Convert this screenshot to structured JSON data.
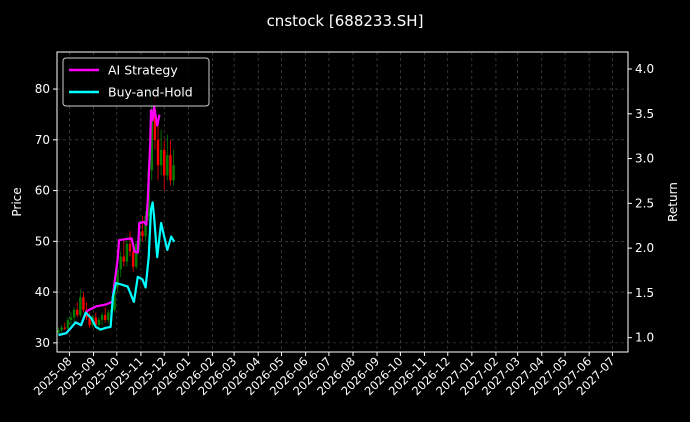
{
  "chart_data": {
    "type": "line",
    "title": "cnstock [688233.SH]",
    "ylabel": "Price",
    "y2label": "Return",
    "xlim": [
      "2025-07-16",
      "2027-07-21"
    ],
    "ylim": [
      28.2,
      87.3
    ],
    "y2lim": [
      0.84,
      4.19
    ],
    "grid": true,
    "legend_position": "top-left",
    "colors": {
      "background": "#000000",
      "grid": "#555555",
      "up": "#008000",
      "down": "#ff0000",
      "strategy": "#ff00ff",
      "buyhold": "#00ffff"
    },
    "x_ticks": [
      "2025-08",
      "2025-09",
      "2025-10",
      "2025-11",
      "2025-12",
      "2026-01",
      "2026-02",
      "2026-03",
      "2026-04",
      "2026-05",
      "2026-06",
      "2026-07",
      "2026-08",
      "2026-09",
      "2026-10",
      "2026-11",
      "2026-12",
      "2027-01",
      "2027-02",
      "2027-03",
      "2027-04",
      "2027-05",
      "2027-06",
      "2027-07"
    ],
    "y_ticks": [
      30,
      40,
      50,
      60,
      70,
      80
    ],
    "y2_ticks": [
      "1.0",
      "1.5",
      "2.0",
      "2.5",
      "3.0",
      "3.5",
      "4.0"
    ],
    "candles": [
      [
        "2025-07-18",
        32,
        33,
        31.5,
        32.5
      ],
      [
        "2025-07-22",
        32.5,
        33.5,
        32,
        33
      ],
      [
        "2025-07-26",
        33,
        34,
        32.5,
        32.8
      ],
      [
        "2025-07-30",
        32.8,
        35,
        32.5,
        34.5
      ],
      [
        "2025-08-03",
        34.5,
        36,
        33.5,
        35
      ],
      [
        "2025-08-07",
        35,
        37,
        34,
        36.5
      ],
      [
        "2025-08-11",
        36.5,
        38,
        35,
        35.5
      ],
      [
        "2025-08-15",
        35.5,
        40.5,
        35,
        39
      ],
      [
        "2025-08-19",
        39,
        40,
        36,
        36.5
      ],
      [
        "2025-08-23",
        36.5,
        38,
        34.5,
        35
      ],
      [
        "2025-08-27",
        35,
        36,
        33,
        33.5
      ],
      [
        "2025-08-31",
        33.5,
        35.5,
        33,
        35
      ],
      [
        "2025-09-04",
        35,
        36,
        33,
        33.5
      ],
      [
        "2025-09-08",
        33.5,
        35,
        32.5,
        34.5
      ],
      [
        "2025-09-12",
        34.5,
        36,
        33.5,
        35.5
      ],
      [
        "2025-09-16",
        35.5,
        37,
        34,
        34.5
      ],
      [
        "2025-09-20",
        34.5,
        36.5,
        34,
        36
      ],
      [
        "2025-09-24",
        36,
        37,
        35,
        36.5
      ],
      [
        "2025-09-28",
        36.5,
        42,
        36,
        41
      ],
      [
        "2025-10-02",
        41,
        46,
        40,
        44.5
      ],
      [
        "2025-10-06",
        44.5,
        48,
        43,
        47
      ],
      [
        "2025-10-10",
        47,
        50,
        45,
        46
      ],
      [
        "2025-10-14",
        46,
        51,
        45,
        49.5
      ],
      [
        "2025-10-18",
        49.5,
        52,
        47,
        48
      ],
      [
        "2025-10-22",
        48,
        49,
        44,
        45
      ],
      [
        "2025-10-26",
        45,
        50,
        44.5,
        49.5
      ],
      [
        "2025-10-30",
        49.5,
        54,
        48,
        52
      ],
      [
        "2025-11-03",
        52,
        55,
        50,
        51
      ],
      [
        "2025-11-07",
        51,
        56,
        50,
        55
      ],
      [
        "2025-11-11",
        55,
        66,
        54,
        64
      ],
      [
        "2025-11-15",
        64,
        80,
        62,
        76
      ],
      [
        "2025-11-19",
        76,
        79,
        68,
        70
      ],
      [
        "2025-11-23",
        70,
        74,
        62,
        65
      ],
      [
        "2025-11-27",
        65,
        72,
        63,
        68
      ],
      [
        "2025-12-01",
        68,
        70,
        60,
        63
      ],
      [
        "2025-12-05",
        63,
        71,
        62,
        67
      ],
      [
        "2025-12-09",
        67,
        70,
        61,
        62
      ],
      [
        "2025-12-13",
        62,
        68,
        61,
        65
      ]
    ],
    "series": [
      {
        "name": "AI Strategy",
        "axis": "right",
        "points": [
          [
            "2025-07-18",
            1.03
          ],
          [
            "2025-07-28",
            1.05
          ],
          [
            "2025-08-03",
            1.11
          ],
          [
            "2025-08-09",
            1.17
          ],
          [
            "2025-08-16",
            1.14
          ],
          [
            "2025-08-22",
            1.28
          ],
          [
            "2025-08-26",
            1.31
          ],
          [
            "2025-09-05",
            1.35
          ],
          [
            "2025-09-17",
            1.37
          ],
          [
            "2025-09-25",
            1.4
          ],
          [
            "2025-09-28",
            1.61
          ],
          [
            "2025-10-02",
            1.87
          ],
          [
            "2025-10-04",
            2.09
          ],
          [
            "2025-10-20",
            2.11
          ],
          [
            "2025-10-24",
            1.96
          ],
          [
            "2025-10-28",
            1.95
          ],
          [
            "2025-10-30",
            2.28
          ],
          [
            "2025-11-05",
            2.29
          ],
          [
            "2025-11-08",
            2.26
          ],
          [
            "2025-11-10",
            2.57
          ],
          [
            "2025-11-13",
            3.17
          ],
          [
            "2025-11-14",
            3.54
          ],
          [
            "2025-11-16",
            3.43
          ],
          [
            "2025-11-18",
            3.58
          ],
          [
            "2025-11-22",
            3.37
          ],
          [
            "2025-11-25",
            3.49
          ]
        ]
      },
      {
        "name": "Buy-and-Hold",
        "axis": "right",
        "points": [
          [
            "2025-07-18",
            1.03
          ],
          [
            "2025-07-28",
            1.05
          ],
          [
            "2025-08-03",
            1.11
          ],
          [
            "2025-08-09",
            1.17
          ],
          [
            "2025-08-16",
            1.14
          ],
          [
            "2025-08-22",
            1.28
          ],
          [
            "2025-08-29",
            1.22
          ],
          [
            "2025-09-04",
            1.12
          ],
          [
            "2025-09-10",
            1.09
          ],
          [
            "2025-09-17",
            1.11
          ],
          [
            "2025-09-23",
            1.12
          ],
          [
            "2025-09-26",
            1.46
          ],
          [
            "2025-09-30",
            1.61
          ],
          [
            "2025-10-08",
            1.59
          ],
          [
            "2025-10-15",
            1.57
          ],
          [
            "2025-10-23",
            1.4
          ],
          [
            "2025-10-28",
            1.68
          ],
          [
            "2025-11-03",
            1.65
          ],
          [
            "2025-11-07",
            1.56
          ],
          [
            "2025-11-11",
            1.9
          ],
          [
            "2025-11-14",
            2.43
          ],
          [
            "2025-11-16",
            2.51
          ],
          [
            "2025-11-18",
            2.35
          ],
          [
            "2025-11-22",
            1.9
          ],
          [
            "2025-11-27",
            2.28
          ],
          [
            "2025-12-01",
            2.13
          ],
          [
            "2025-12-05",
            1.98
          ],
          [
            "2025-12-10",
            2.13
          ],
          [
            "2025-12-14",
            2.07
          ]
        ]
      }
    ]
  }
}
